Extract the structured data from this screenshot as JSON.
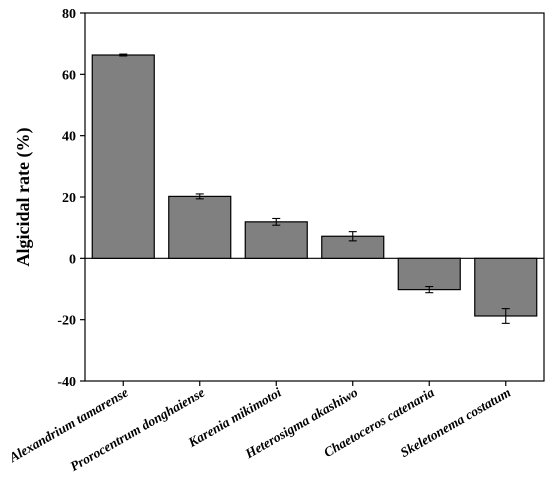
{
  "chart_data": {
    "type": "bar",
    "title": "",
    "xlabel": "",
    "ylabel": "Algicidal rate (%)",
    "ylim": [
      -40,
      80
    ],
    "yticks": [
      -40,
      -20,
      0,
      20,
      40,
      60,
      80
    ],
    "ytick_labels": [
      "-40",
      "-20",
      "0",
      "20",
      "40",
      "60",
      "80"
    ],
    "categories": [
      "Alexandrium  tamarense",
      "Prorocentrum donghaiense",
      "Karenia mikimotoi",
      "Heterosigma akashiwo",
      "Chaetoceros catenaria",
      "Skeletonema costatum"
    ],
    "values": [
      66.3,
      20.2,
      11.9,
      7.2,
      -10.2,
      -18.8
    ],
    "errors": [
      0.3,
      0.8,
      1.1,
      1.5,
      1.0,
      2.4
    ],
    "bar_color": "#808080",
    "grid": false,
    "legend": "none"
  }
}
